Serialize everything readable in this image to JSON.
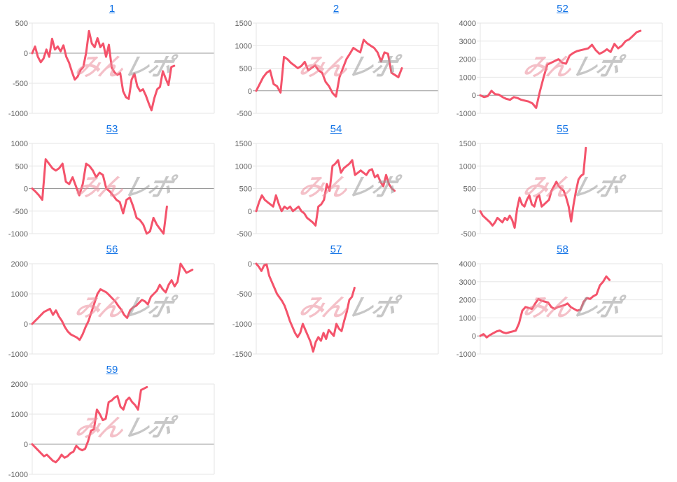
{
  "page": {
    "background": "#ffffff"
  },
  "watermark": {
    "pink_text": "みん",
    "gray_text": "レポ",
    "pink_color": "#ec8e9c",
    "gray_color": "#9b9b9b"
  },
  "style": {
    "line_color": "#f4536b",
    "grid_color": "#e6e6e6",
    "zero_line_color": "#999999",
    "tick_label_color": "#636363",
    "link_color": "#1273e6"
  },
  "chart_data": [
    {
      "type": "line",
      "title": "1",
      "title_is_link": true,
      "xlabel": "",
      "ylabel": "",
      "x_tick_labels": false,
      "grid": true,
      "legend": "none",
      "ticks": [
        500,
        0,
        -500,
        -1000
      ],
      "ylim": [
        -1000,
        500
      ],
      "span": 0.78,
      "values": [
        0,
        110,
        -60,
        -150,
        -90,
        60,
        -60,
        240,
        60,
        110,
        30,
        130,
        -60,
        -160,
        -310,
        -440,
        -390,
        -280,
        -230,
        10,
        370,
        160,
        100,
        250,
        100,
        160,
        -60,
        140,
        -240,
        -320,
        -360,
        -330,
        -630,
        -730,
        -760,
        -440,
        -340,
        -550,
        -630,
        -600,
        -700,
        -830,
        -950,
        -750,
        -600,
        -560,
        -300,
        -420,
        -530,
        -230,
        -210
      ]
    },
    {
      "type": "line",
      "title": "2",
      "title_is_link": true,
      "xlabel": "",
      "ylabel": "",
      "x_tick_labels": false,
      "grid": true,
      "legend": "none",
      "ticks": [
        1500,
        1000,
        500,
        0,
        -500
      ],
      "ylim": [
        -500,
        1500
      ],
      "span": 0.8,
      "values": [
        0,
        150,
        300,
        400,
        450,
        150,
        100,
        -40,
        750,
        700,
        620,
        560,
        500,
        550,
        640,
        450,
        510,
        560,
        450,
        400,
        200,
        100,
        -50,
        -130,
        300,
        500,
        700,
        820,
        950,
        900,
        850,
        1130,
        1050,
        1000,
        950,
        850,
        650,
        850,
        820,
        400,
        350,
        300,
        500
      ]
    },
    {
      "type": "line",
      "title": "52",
      "title_is_link": true,
      "xlabel": "",
      "ylabel": "",
      "x_tick_labels": false,
      "grid": true,
      "legend": "none",
      "ticks": [
        4000,
        3000,
        2000,
        1000,
        0,
        -1000
      ],
      "ylim": [
        -1000,
        4000
      ],
      "span": 0.88,
      "values": [
        0,
        -100,
        -50,
        250,
        60,
        40,
        -100,
        -200,
        -250,
        -100,
        -150,
        -250,
        -300,
        -350,
        -450,
        -700,
        200,
        1000,
        1700,
        1800,
        1900,
        2000,
        1800,
        1750,
        2200,
        2350,
        2450,
        2500,
        2550,
        2600,
        2800,
        2500,
        2300,
        2400,
        2550,
        2400,
        2850,
        2600,
        2750,
        3000,
        3100,
        3300,
        3500,
        3570
      ]
    },
    {
      "type": "line",
      "title": "53",
      "title_is_link": true,
      "xlabel": "",
      "ylabel": "",
      "x_tick_labels": false,
      "grid": true,
      "legend": "none",
      "ticks": [
        1000,
        500,
        0,
        -500,
        -1000
      ],
      "ylim": [
        -1000,
        1000
      ],
      "span": 0.74,
      "values": [
        0,
        -70,
        -150,
        -250,
        650,
        550,
        450,
        400,
        450,
        550,
        150,
        100,
        250,
        50,
        -150,
        100,
        550,
        500,
        400,
        250,
        350,
        300,
        0,
        -60,
        -150,
        -250,
        -300,
        -550,
        -250,
        -200,
        -400,
        -650,
        -700,
        -800,
        -1000,
        -950,
        -650,
        -800,
        -900,
        -1000,
        -400
      ]
    },
    {
      "type": "line",
      "title": "54",
      "title_is_link": true,
      "xlabel": "",
      "ylabel": "",
      "x_tick_labels": false,
      "grid": true,
      "legend": "none",
      "ticks": [
        1500,
        1000,
        500,
        0,
        -500
      ],
      "ylim": [
        -500,
        1500
      ],
      "span": 0.76,
      "values": [
        0,
        200,
        350,
        250,
        200,
        150,
        100,
        350,
        150,
        0,
        100,
        50,
        100,
        0,
        50,
        100,
        0,
        -50,
        -150,
        -200,
        -250,
        -320,
        100,
        150,
        250,
        600,
        450,
        1000,
        1050,
        1130,
        850,
        950,
        1000,
        1050,
        1130,
        800,
        850,
        900,
        850,
        800,
        900,
        930,
        750,
        800,
        650,
        550,
        800,
        600,
        500,
        450
      ]
    },
    {
      "type": "line",
      "title": "55",
      "title_is_link": true,
      "xlabel": "",
      "ylabel": "",
      "x_tick_labels": false,
      "grid": true,
      "legend": "none",
      "ticks": [
        1500,
        1000,
        500,
        0,
        -500
      ],
      "ylim": [
        -500,
        1500
      ],
      "span": 0.58,
      "values": [
        0,
        -100,
        -150,
        -200,
        -250,
        -320,
        -250,
        -150,
        -200,
        -250,
        -150,
        -200,
        -100,
        -200,
        -370,
        50,
        300,
        150,
        100,
        250,
        350,
        150,
        100,
        300,
        350,
        100,
        150,
        200,
        250,
        450,
        550,
        650,
        550,
        500,
        450,
        300,
        100,
        -230,
        150,
        450,
        700,
        780,
        820,
        1400
      ]
    },
    {
      "type": "line",
      "title": "56",
      "title_is_link": true,
      "xlabel": "",
      "ylabel": "",
      "x_tick_labels": false,
      "grid": true,
      "legend": "none",
      "ticks": [
        2000,
        1000,
        0,
        -1000
      ],
      "ylim": [
        -1000,
        2000
      ],
      "span": 0.88,
      "values": [
        0,
        100,
        200,
        300,
        400,
        450,
        500,
        300,
        450,
        250,
        100,
        -100,
        -250,
        -350,
        -400,
        -450,
        -530,
        -350,
        -100,
        100,
        400,
        700,
        1000,
        1150,
        1100,
        1050,
        950,
        850,
        750,
        600,
        480,
        300,
        200,
        450,
        550,
        600,
        700,
        800,
        750,
        650,
        900,
        1000,
        1100,
        1300,
        1150,
        1050,
        1300,
        1450,
        1250,
        1400,
        2000,
        1850,
        1700,
        1750,
        1800
      ]
    },
    {
      "type": "line",
      "title": "57",
      "title_is_link": true,
      "xlabel": "",
      "ylabel": "",
      "x_tick_labels": false,
      "grid": true,
      "legend": "none",
      "ticks": [
        0,
        -500,
        -1000,
        -1500
      ],
      "ylim": [
        -1500,
        0
      ],
      "span": 0.54,
      "values": [
        0,
        -50,
        -120,
        -30,
        -10,
        -200,
        -300,
        -400,
        -500,
        -560,
        -620,
        -700,
        -820,
        -950,
        -1050,
        -1150,
        -1220,
        -1150,
        -1000,
        -1100,
        -1200,
        -1300,
        -1460,
        -1300,
        -1220,
        -1280,
        -1150,
        -1250,
        -1100,
        -1150,
        -1200,
        -1000,
        -1080,
        -1120,
        -950,
        -800,
        -600,
        -550,
        -400
      ]
    },
    {
      "type": "line",
      "title": "58",
      "title_is_link": true,
      "xlabel": "",
      "ylabel": "",
      "x_tick_labels": false,
      "grid": true,
      "legend": "none",
      "ticks": [
        4000,
        3000,
        2000,
        1000,
        0,
        -1000
      ],
      "ylim": [
        -1000,
        4000
      ],
      "span": 0.71,
      "values": [
        0,
        100,
        -80,
        50,
        150,
        250,
        300,
        200,
        150,
        200,
        250,
        300,
        700,
        1400,
        1600,
        1550,
        1500,
        1800,
        2050,
        1950,
        1900,
        1850,
        1600,
        1500,
        1600,
        1650,
        1700,
        1800,
        1600,
        1500,
        1400,
        1450,
        1900,
        2100,
        2050,
        2200,
        2300,
        2800,
        3000,
        3300,
        3100
      ]
    },
    {
      "type": "line",
      "title": "59",
      "title_is_link": true,
      "xlabel": "",
      "ylabel": "",
      "x_tick_labels": false,
      "grid": true,
      "legend": "none",
      "ticks": [
        2000,
        1000,
        0,
        -1000
      ],
      "ylim": [
        -1000,
        2000
      ],
      "span": 0.63,
      "values": [
        0,
        -100,
        -200,
        -300,
        -400,
        -350,
        -450,
        -550,
        -600,
        -500,
        -350,
        -450,
        -400,
        -300,
        -250,
        -50,
        -150,
        -200,
        -150,
        100,
        450,
        500,
        1150,
        1000,
        800,
        850,
        1400,
        1450,
        1550,
        1600,
        1250,
        1150,
        1450,
        1550,
        1400,
        1300,
        1150,
        1800,
        1850,
        1900
      ]
    }
  ]
}
